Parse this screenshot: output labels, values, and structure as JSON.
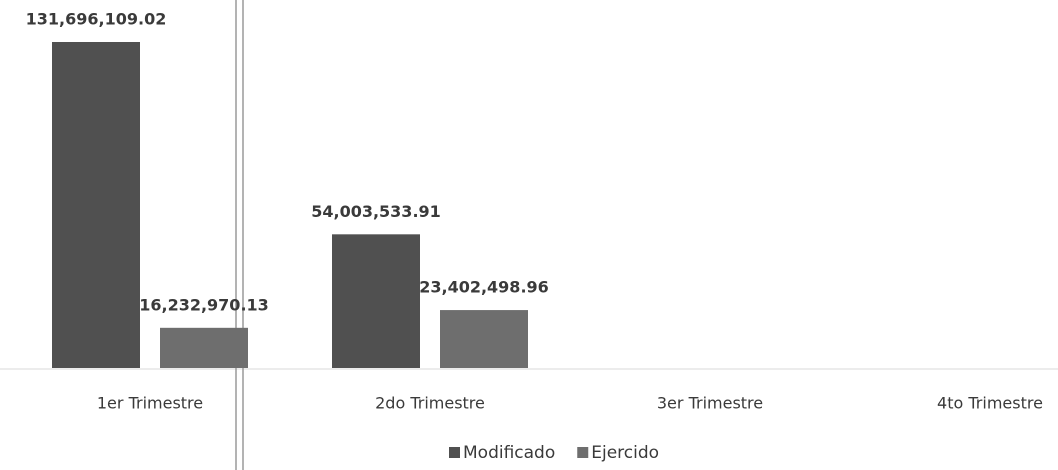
{
  "chart_data": {
    "type": "bar",
    "categories": [
      "1er Trimestre",
      "2do Trimestre",
      "3er Trimestre",
      "4to Trimestre"
    ],
    "series": [
      {
        "name": "Modificado",
        "color": "#505050",
        "values": [
          131696109.02,
          54003533.91,
          null,
          null
        ],
        "value_labels": [
          "131,696,109.02",
          "54,003,533.91",
          null,
          null
        ]
      },
      {
        "name": "Ejercido",
        "color": "#6e6e6e",
        "values": [
          16232970.13,
          23402498.96,
          null,
          null
        ],
        "value_labels": [
          "16,232,970.13",
          "23,402,498.96",
          null,
          null
        ]
      }
    ]
  }
}
